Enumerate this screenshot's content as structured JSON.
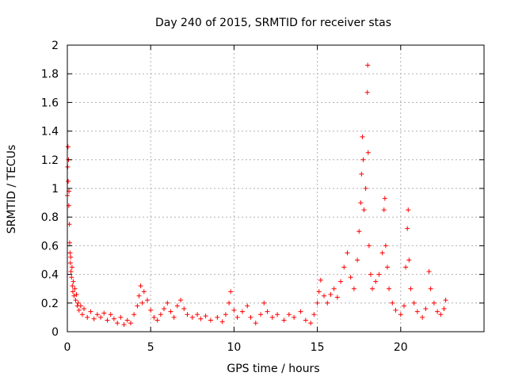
{
  "chart_data": {
    "type": "scatter",
    "title": "Day 240 of 2015, SRMTID for receiver stas",
    "xlabel": "GPS time / hours",
    "ylabel": "SRMTID / TECUs",
    "xlim": [
      0,
      25
    ],
    "ylim": [
      0,
      2
    ],
    "x_ticks": [
      0,
      5,
      10,
      15,
      20
    ],
    "y_ticks": [
      0,
      0.2,
      0.4,
      0.6,
      0.8,
      1,
      1.2,
      1.4,
      1.6,
      1.8,
      2
    ],
    "x_tick_labels": [
      "0",
      "5",
      "10",
      "15",
      "20"
    ],
    "y_tick_labels": [
      "0",
      "0.2",
      "0.4",
      "0.6",
      "0.8",
      "1",
      "1.2",
      "1.4",
      "1.6",
      "1.8",
      "2"
    ],
    "grid": true,
    "marker": "+",
    "series": [
      {
        "name": "SRMTID",
        "color": "#ff0000",
        "points": [
          [
            0.0,
            0.95
          ],
          [
            0.02,
            1.15
          ],
          [
            0.04,
            1.29
          ],
          [
            0.05,
            1.05
          ],
          [
            0.07,
            1.2
          ],
          [
            0.09,
            0.88
          ],
          [
            0.1,
            0.98
          ],
          [
            0.12,
            0.75
          ],
          [
            0.14,
            0.62
          ],
          [
            0.16,
            0.55
          ],
          [
            0.18,
            0.48
          ],
          [
            0.2,
            0.52
          ],
          [
            0.22,
            0.42
          ],
          [
            0.25,
            0.38
          ],
          [
            0.28,
            0.45
          ],
          [
            0.3,
            0.32
          ],
          [
            0.33,
            0.28
          ],
          [
            0.36,
            0.35
          ],
          [
            0.4,
            0.25
          ],
          [
            0.45,
            0.3
          ],
          [
            0.5,
            0.22
          ],
          [
            0.55,
            0.26
          ],
          [
            0.6,
            0.18
          ],
          [
            0.65,
            0.2
          ],
          [
            0.7,
            0.15
          ],
          [
            0.8,
            0.18
          ],
          [
            0.9,
            0.12
          ],
          [
            1.0,
            0.16
          ],
          [
            1.2,
            0.1
          ],
          [
            1.4,
            0.14
          ],
          [
            1.6,
            0.09
          ],
          [
            1.8,
            0.12
          ],
          [
            2.0,
            0.1
          ],
          [
            2.2,
            0.13
          ],
          [
            2.4,
            0.08
          ],
          [
            2.6,
            0.12
          ],
          [
            2.8,
            0.09
          ],
          [
            3.0,
            0.06
          ],
          [
            3.2,
            0.1
          ],
          [
            3.4,
            0.05
          ],
          [
            3.6,
            0.08
          ],
          [
            3.8,
            0.06
          ],
          [
            4.0,
            0.12
          ],
          [
            4.2,
            0.18
          ],
          [
            4.3,
            0.25
          ],
          [
            4.4,
            0.32
          ],
          [
            4.5,
            0.2
          ],
          [
            4.6,
            0.28
          ],
          [
            4.8,
            0.22
          ],
          [
            5.0,
            0.15
          ],
          [
            5.2,
            0.1
          ],
          [
            5.4,
            0.08
          ],
          [
            5.6,
            0.12
          ],
          [
            5.8,
            0.16
          ],
          [
            6.0,
            0.2
          ],
          [
            6.2,
            0.14
          ],
          [
            6.4,
            0.1
          ],
          [
            6.6,
            0.18
          ],
          [
            6.8,
            0.22
          ],
          [
            7.0,
            0.16
          ],
          [
            7.2,
            0.12
          ],
          [
            7.5,
            0.1
          ],
          [
            7.8,
            0.12
          ],
          [
            8.0,
            0.09
          ],
          [
            8.3,
            0.11
          ],
          [
            8.6,
            0.08
          ],
          [
            9.0,
            0.1
          ],
          [
            9.3,
            0.07
          ],
          [
            9.5,
            0.12
          ],
          [
            9.7,
            0.2
          ],
          [
            9.8,
            0.28
          ],
          [
            10.0,
            0.15
          ],
          [
            10.2,
            0.1
          ],
          [
            10.5,
            0.14
          ],
          [
            10.8,
            0.18
          ],
          [
            11.0,
            0.1
          ],
          [
            11.3,
            0.06
          ],
          [
            11.6,
            0.12
          ],
          [
            11.8,
            0.2
          ],
          [
            12.0,
            0.14
          ],
          [
            12.3,
            0.1
          ],
          [
            12.6,
            0.12
          ],
          [
            13.0,
            0.08
          ],
          [
            13.3,
            0.12
          ],
          [
            13.6,
            0.1
          ],
          [
            14.0,
            0.14
          ],
          [
            14.3,
            0.08
          ],
          [
            14.6,
            0.06
          ],
          [
            14.8,
            0.12
          ],
          [
            15.0,
            0.2
          ],
          [
            15.1,
            0.28
          ],
          [
            15.2,
            0.36
          ],
          [
            15.4,
            0.25
          ],
          [
            15.6,
            0.2
          ],
          [
            15.8,
            0.26
          ],
          [
            16.0,
            0.3
          ],
          [
            16.2,
            0.24
          ],
          [
            16.4,
            0.35
          ],
          [
            16.6,
            0.45
          ],
          [
            16.8,
            0.55
          ],
          [
            17.0,
            0.38
          ],
          [
            17.2,
            0.3
          ],
          [
            17.4,
            0.5
          ],
          [
            17.5,
            0.7
          ],
          [
            17.6,
            0.9
          ],
          [
            17.65,
            1.1
          ],
          [
            17.7,
            1.36
          ],
          [
            17.75,
            1.2
          ],
          [
            17.8,
            0.85
          ],
          [
            17.9,
            1.0
          ],
          [
            18.0,
            1.67
          ],
          [
            18.02,
            1.86
          ],
          [
            18.05,
            1.25
          ],
          [
            18.1,
            0.6
          ],
          [
            18.2,
            0.4
          ],
          [
            18.3,
            0.3
          ],
          [
            18.5,
            0.35
          ],
          [
            18.7,
            0.4
          ],
          [
            18.9,
            0.55
          ],
          [
            19.0,
            0.85
          ],
          [
            19.05,
            0.93
          ],
          [
            19.1,
            0.6
          ],
          [
            19.2,
            0.45
          ],
          [
            19.3,
            0.3
          ],
          [
            19.5,
            0.2
          ],
          [
            19.7,
            0.15
          ],
          [
            20.0,
            0.12
          ],
          [
            20.2,
            0.18
          ],
          [
            20.3,
            0.45
          ],
          [
            20.4,
            0.72
          ],
          [
            20.45,
            0.85
          ],
          [
            20.5,
            0.5
          ],
          [
            20.6,
            0.3
          ],
          [
            20.8,
            0.2
          ],
          [
            21.0,
            0.14
          ],
          [
            21.3,
            0.1
          ],
          [
            21.5,
            0.16
          ],
          [
            21.7,
            0.42
          ],
          [
            21.8,
            0.3
          ],
          [
            22.0,
            0.2
          ],
          [
            22.2,
            0.14
          ],
          [
            22.4,
            0.12
          ],
          [
            22.6,
            0.16
          ],
          [
            22.7,
            0.22
          ]
        ]
      }
    ]
  }
}
